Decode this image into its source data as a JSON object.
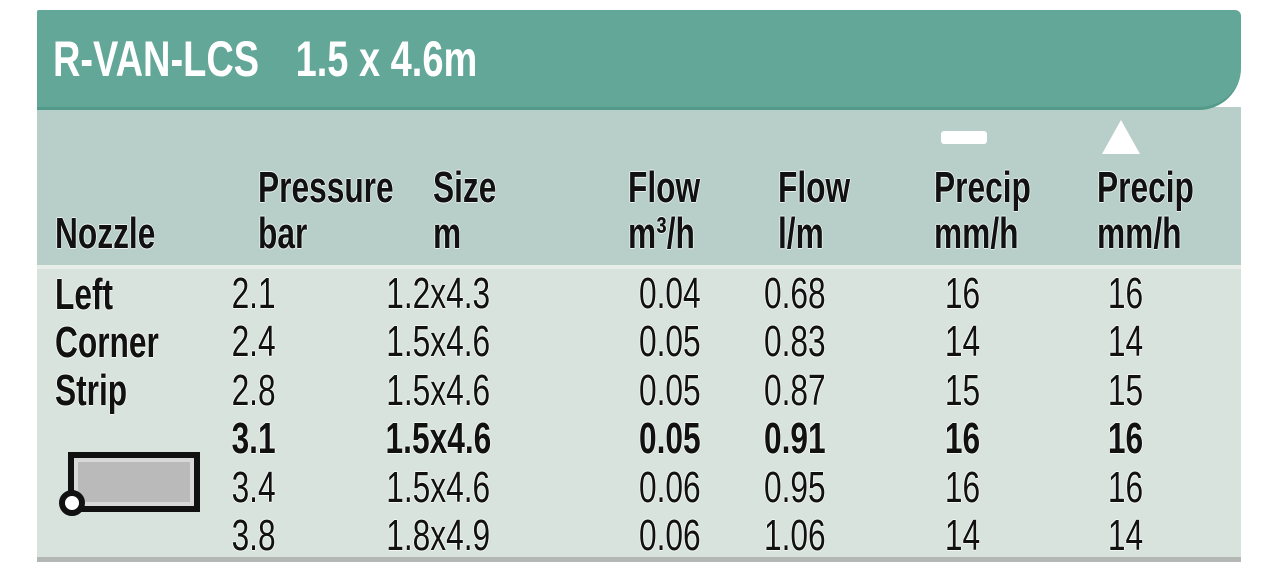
{
  "header": {
    "product": "R-VAN-LCS",
    "range": "1.5 x 4.6m"
  },
  "table": {
    "columns": [
      {
        "label": "Nozzle",
        "unit": ""
      },
      {
        "label": "Pressure",
        "unit": "bar"
      },
      {
        "label": "Size",
        "unit": "m"
      },
      {
        "label": "Flow",
        "unit": "m³/h"
      },
      {
        "label": "Flow",
        "unit": "l/m"
      },
      {
        "label": "Precip",
        "unit": "mm/h",
        "icon": "dash-icon"
      },
      {
        "label": "Precip",
        "unit": "mm/h",
        "icon": "triangle-icon"
      }
    ],
    "nozzle": {
      "name_lines": [
        "Left",
        "Corner",
        "Strip"
      ],
      "icon": "left-corner-strip-diagram"
    },
    "rows": [
      {
        "pressure": "2.1",
        "size": "1.2x4.3",
        "flow_m3h": "0.04",
        "flow_lm": "0.68",
        "precip_sq": "16",
        "precip_tri": "16",
        "bold": false
      },
      {
        "pressure": "2.4",
        "size": "1.5x4.6",
        "flow_m3h": "0.05",
        "flow_lm": "0.83",
        "precip_sq": "14",
        "precip_tri": "14",
        "bold": false
      },
      {
        "pressure": "2.8",
        "size": "1.5x4.6",
        "flow_m3h": "0.05",
        "flow_lm": "0.87",
        "precip_sq": "15",
        "precip_tri": "15",
        "bold": false
      },
      {
        "pressure": "3.1",
        "size": "1.5x4.6",
        "flow_m3h": "0.05",
        "flow_lm": "0.91",
        "precip_sq": "16",
        "precip_tri": "16",
        "bold": true
      },
      {
        "pressure": "3.4",
        "size": "1.5x4.6",
        "flow_m3h": "0.06",
        "flow_lm": "0.95",
        "precip_sq": "16",
        "precip_tri": "16",
        "bold": false
      },
      {
        "pressure": "3.8",
        "size": "1.8x4.9",
        "flow_m3h": "0.06",
        "flow_lm": "1.06",
        "precip_sq": "14",
        "precip_tri": "14",
        "bold": false
      }
    ]
  },
  "colors": {
    "teal_bar": "#62a797",
    "teal_edge": "#549a8a",
    "header_band": "#b7cfc8",
    "body_bg": "#d8e3de",
    "bottom_rule": "#b3b8b5",
    "text": "#111111",
    "title_text": "#ffffff"
  }
}
